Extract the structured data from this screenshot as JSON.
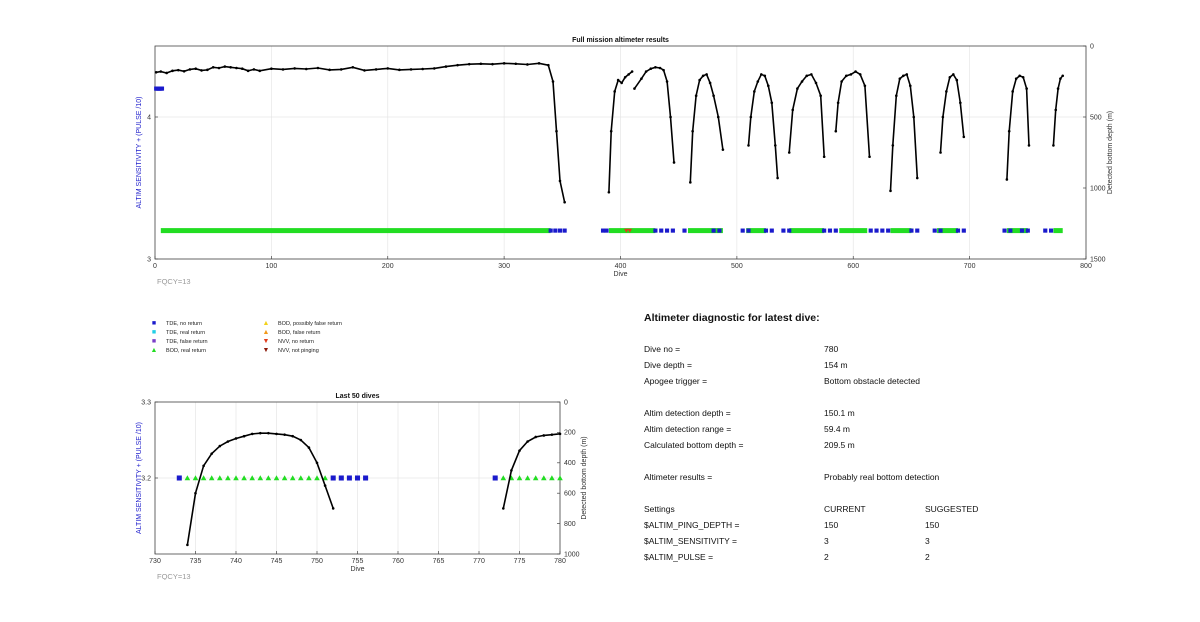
{
  "chart_data": [
    {
      "type": "scatter",
      "title": "Full mission altimeter results",
      "xlabel": "Dive",
      "ylabel": "ALTIM SENSITIVITY + (PULSE /10)",
      "ylabel_right": "Detected bottom depth (m)",
      "xlim": [
        0,
        800
      ],
      "ylim": [
        3,
        4.5
      ],
      "ylim_right": [
        1500,
        0
      ],
      "x_ticks": [
        "0",
        "100",
        "200",
        "300",
        "400",
        "500",
        "600",
        "700",
        "800"
      ],
      "y_ticks": [
        "3",
        "4"
      ],
      "y_right_ticks": [
        "0",
        "500",
        "1000",
        "1500"
      ],
      "grid": true,
      "annotation": "FQCY=13",
      "bottom_depth_series": [
        {
          "name": "",
          "x": [
            1,
            5,
            10,
            15,
            20,
            25,
            30,
            35,
            40,
            45,
            50,
            55,
            60,
            65,
            70,
            75,
            80,
            85,
            90,
            100,
            110,
            120,
            130,
            140,
            150,
            160,
            170,
            180,
            190,
            200,
            210,
            220,
            230,
            240,
            250,
            260,
            270,
            280,
            290,
            300,
            310,
            320,
            330,
            338,
            342,
            345,
            348,
            352
          ],
          "y": [
            185,
            180,
            190,
            175,
            170,
            178,
            165,
            160,
            172,
            168,
            150,
            155,
            145,
            150,
            155,
            160,
            175,
            165,
            175,
            160,
            165,
            158,
            162,
            155,
            168,
            165,
            150,
            172,
            165,
            158,
            168,
            165,
            162,
            158,
            145,
            135,
            128,
            125,
            128,
            122,
            125,
            130,
            122,
            135,
            250,
            600,
            950,
            1100
          ]
        },
        {
          "name": "",
          "x": [
            390,
            392,
            395,
            398,
            401,
            404,
            407,
            410
          ],
          "y": [
            1030,
            600,
            320,
            240,
            260,
            220,
            200,
            180
          ]
        },
        {
          "name": "",
          "x": [
            412,
            418,
            422,
            426,
            430,
            434,
            437,
            440,
            443,
            446
          ],
          "y": [
            300,
            230,
            180,
            160,
            150,
            155,
            170,
            250,
            500,
            820
          ]
        },
        {
          "name": "",
          "x": [
            460,
            462,
            465,
            468,
            471,
            474,
            477,
            480,
            484,
            488
          ],
          "y": [
            960,
            600,
            350,
            240,
            210,
            200,
            260,
            350,
            500,
            730
          ]
        },
        {
          "name": "",
          "x": [
            510,
            512,
            515,
            518,
            521,
            524,
            527,
            530,
            533,
            535
          ],
          "y": [
            700,
            500,
            320,
            250,
            200,
            210,
            280,
            400,
            700,
            930
          ]
        },
        {
          "name": "",
          "x": [
            545,
            548,
            552,
            556,
            560,
            564,
            568,
            572,
            575
          ],
          "y": [
            750,
            450,
            300,
            250,
            210,
            200,
            260,
            350,
            780
          ]
        },
        {
          "name": "",
          "x": [
            585,
            587,
            590,
            594,
            598,
            602,
            606,
            610,
            614
          ],
          "y": [
            600,
            400,
            250,
            210,
            200,
            180,
            200,
            280,
            780
          ]
        },
        {
          "name": "",
          "x": [
            632,
            634,
            637,
            640,
            643,
            646,
            649,
            652,
            655
          ],
          "y": [
            1020,
            700,
            350,
            230,
            210,
            200,
            280,
            500,
            930
          ]
        },
        {
          "name": "",
          "x": [
            675,
            677,
            680,
            683,
            686,
            689,
            692,
            695
          ],
          "y": [
            750,
            500,
            320,
            220,
            200,
            240,
            400,
            640
          ]
        },
        {
          "name": "",
          "x": [
            732,
            734,
            737,
            740,
            743,
            746,
            749,
            751
          ],
          "y": [
            940,
            600,
            320,
            230,
            210,
            220,
            300,
            700
          ]
        },
        {
          "name": "",
          "x": [
            772,
            774,
            776,
            778,
            780
          ],
          "y": [
            700,
            450,
            300,
            230,
            209.5
          ]
        }
      ],
      "tde_no_return_markers": [
        {
          "x": [
            1,
            2,
            3,
            4,
            5,
            6
          ],
          "y": [
            4.2,
            4.2,
            4.2,
            4.2,
            4.2,
            4.2
          ]
        },
        {
          "x": [
            340,
            344,
            348,
            352,
            385,
            388,
            430,
            435,
            440,
            445,
            455,
            480,
            485,
            505,
            510,
            525,
            530,
            540,
            545,
            575,
            580,
            585,
            615,
            620,
            625,
            630,
            650,
            655,
            670,
            675,
            690,
            695,
            730,
            735,
            745,
            750,
            765,
            770
          ],
          "y": [
            3.2,
            3.2,
            3.2,
            3.2,
            3.2,
            3.2,
            3.2,
            3.2,
            3.2,
            3.2,
            3.2,
            3.2,
            3.2,
            3.2,
            3.2,
            3.2,
            3.2,
            3.2,
            3.2,
            3.2,
            3.2,
            3.2,
            3.2,
            3.2,
            3.2,
            3.2,
            3.2,
            3.2,
            3.2,
            3.2,
            3.2,
            3.2,
            3.2,
            3.2,
            3.2,
            3.2,
            3.2,
            3.2
          ]
        }
      ],
      "bod_real_return_ranges": [
        [
          5,
          340
        ],
        [
          390,
          430
        ],
        [
          458,
          488
        ],
        [
          508,
          525
        ],
        [
          545,
          575
        ],
        [
          588,
          612
        ],
        [
          632,
          650
        ],
        [
          672,
          690
        ],
        [
          732,
          750
        ],
        [
          772,
          780
        ]
      ],
      "nvv_no_return_markers": {
        "x": [
          405,
          408
        ],
        "y": [
          3.2,
          3.2
        ]
      }
    },
    {
      "type": "scatter",
      "title": "Last 50 dives",
      "xlabel": "Dive",
      "ylabel": "ALTIM SENSITIVITY + (PULSE /10)",
      "ylabel_right": "Detected bottom depth (m)",
      "xlim": [
        730,
        780
      ],
      "ylim": [
        3.1,
        3.3
      ],
      "ylim_right": [
        1000,
        0
      ],
      "x_ticks": [
        "730",
        "735",
        "740",
        "745",
        "750",
        "755",
        "760",
        "765",
        "770",
        "775",
        "780"
      ],
      "y_ticks": [
        "3.2",
        "3.3"
      ],
      "y_right_ticks": [
        "0",
        "200",
        "400",
        "600",
        "800",
        "1000"
      ],
      "grid": true,
      "annotation": "FQCY=13",
      "bottom_depth_series": [
        {
          "name": "",
          "x": [
            734,
            735,
            736,
            737,
            738,
            739,
            740,
            741,
            742,
            743,
            744,
            745,
            746,
            747,
            748,
            749,
            750,
            751,
            752
          ],
          "y": [
            940,
            600,
            420,
            340,
            290,
            260,
            240,
            225,
            210,
            205,
            205,
            210,
            215,
            225,
            250,
            300,
            400,
            550,
            700
          ]
        },
        {
          "name": "",
          "x": [
            773,
            774,
            775,
            776,
            777,
            778,
            779,
            780
          ],
          "y": [
            700,
            450,
            320,
            260,
            230,
            220,
            215,
            209.5
          ]
        }
      ],
      "tde_no_return_markers": {
        "x": [
          733,
          752,
          753,
          754,
          755,
          756,
          772
        ],
        "y": [
          3.2,
          3.2,
          3.2,
          3.2,
          3.2,
          3.2,
          3.2
        ]
      },
      "bod_real_return_markers": {
        "x": [
          734,
          735,
          736,
          737,
          738,
          739,
          740,
          741,
          742,
          743,
          744,
          745,
          746,
          747,
          748,
          749,
          750,
          751,
          773,
          774,
          775,
          776,
          777,
          778,
          779,
          780
        ],
        "y": [
          3.2,
          3.2,
          3.2,
          3.2,
          3.2,
          3.2,
          3.2,
          3.2,
          3.2,
          3.2,
          3.2,
          3.2,
          3.2,
          3.2,
          3.2,
          3.2,
          3.2,
          3.2,
          3.2,
          3.2,
          3.2,
          3.2,
          3.2,
          3.2,
          3.2,
          3.2
        ]
      }
    }
  ],
  "legend": {
    "items": [
      {
        "label": "TDE, no return",
        "symbol": "■",
        "color": "#1a1acc"
      },
      {
        "label": "TDE, real return",
        "symbol": "■",
        "color": "#22cfe6"
      },
      {
        "label": "TDE, false return",
        "symbol": "■",
        "color": "#7a3fc8"
      },
      {
        "label": "BOD, real return",
        "symbol": "▲",
        "color": "#22dd22"
      },
      {
        "label": "BOD, possibly false return",
        "symbol": "▲",
        "color": "#f2d21a"
      },
      {
        "label": "BOD, false return",
        "symbol": "▲",
        "color": "#f29a1a"
      },
      {
        "label": "NVV, no return",
        "symbol": "▼",
        "color": "#e03a1a"
      },
      {
        "label": "NVV, not pinging",
        "symbol": "▼",
        "color": "#8b1a0a"
      }
    ]
  },
  "colors": {
    "tde_no_return": "#1a1acc",
    "bod_real_return": "#22dd22",
    "nvv_no_return": "#e03a1a",
    "depth_line": "#000000",
    "left_axis_label": "#2222cc",
    "annotation": "#999999"
  },
  "diagnostic": {
    "title": "Altimeter diagnostic for latest dive:",
    "dive_no_label": "Dive no =",
    "dive_no_value": "780",
    "dive_depth_label": "Dive depth =",
    "dive_depth_value": "154 m",
    "apogee_label": "Apogee trigger =",
    "apogee_value": "Bottom obstacle detected",
    "det_depth_label": "Altim detection depth =",
    "det_depth_value": "150.1 m",
    "det_range_label": "Altim detection range =",
    "det_range_value": "59.4 m",
    "calc_bottom_label": "Calculated bottom depth =",
    "calc_bottom_value": "209.5 m",
    "results_label": "Altimeter results =",
    "results_value": "Probably real bottom detection",
    "settings_label": "Settings",
    "current_label": "CURRENT",
    "suggested_label": "SUGGESTED",
    "ping_label": "$ALTIM_PING_DEPTH =",
    "ping_current": "150",
    "ping_suggested": "150",
    "sens_label": "$ALTIM_SENSITIVITY =",
    "sens_current": "3",
    "sens_suggested": "3",
    "pulse_label": "$ALTIM_PULSE =",
    "pulse_current": "2",
    "pulse_suggested": "2"
  }
}
